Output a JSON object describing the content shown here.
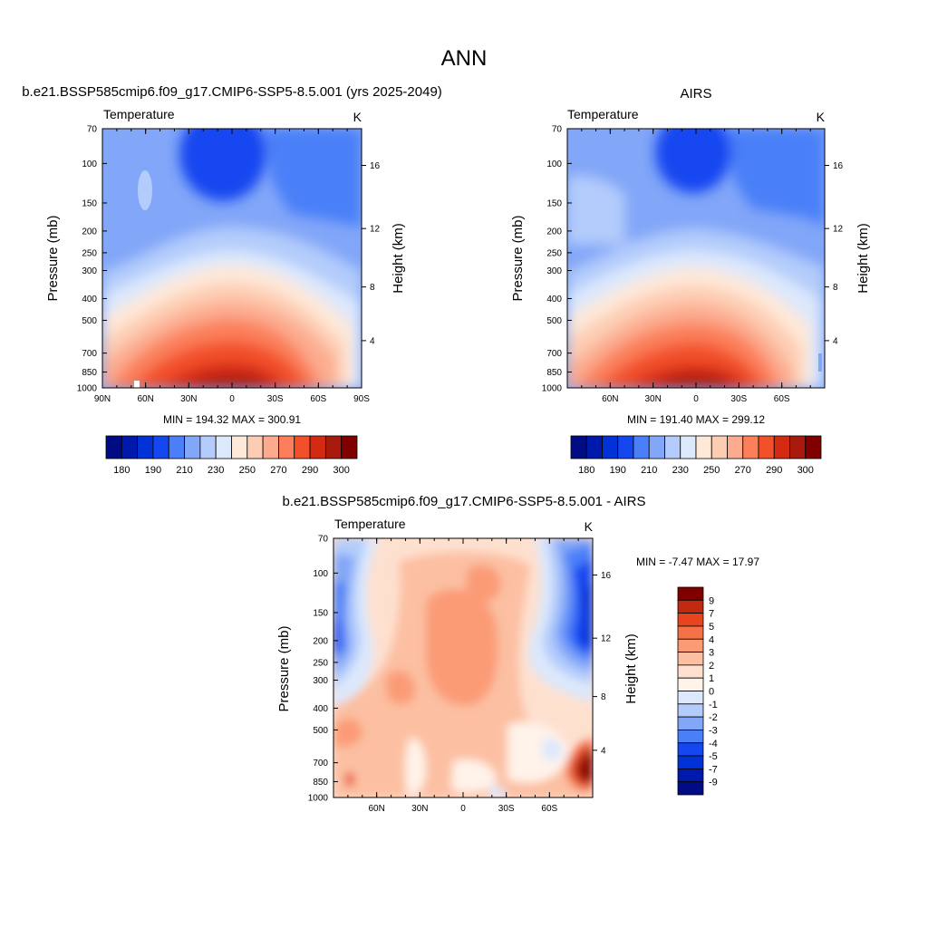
{
  "page_title": "ANN",
  "colors": {
    "abs_palette": [
      "#000b84",
      "#0019ad",
      "#0032d8",
      "#1447f0",
      "#4a7ff8",
      "#82a6f8",
      "#b3ccfb",
      "#dce8fc",
      "#fee8d8",
      "#fdcdb3",
      "#fcab8f",
      "#fb7f5a",
      "#f24f2b",
      "#d42a12",
      "#a81a0c",
      "#800000"
    ],
    "diff_palette": [
      "#000b84",
      "#0019ad",
      "#0032d8",
      "#1447f0",
      "#4a7ff8",
      "#82a6f8",
      "#b3ccfb",
      "#dce8fc",
      "#fff3ea",
      "#fee0cf",
      "#fcbfa2",
      "#fb9b76",
      "#f57148",
      "#e8451f",
      "#c22a10",
      "#800000"
    ]
  },
  "chart_data": [
    {
      "type": "heatmap",
      "panel": "model",
      "title": "b.e21.BSSP585cmip6.f09_g17.CMIP6-SSP5-8.5.001 (yrs 2025-2049)",
      "left_label": "Temperature",
      "units": "K",
      "ylabel": "Pressure (mb)",
      "ylabel_right": "Height (km)",
      "x_ticks": [
        "90N",
        "60N",
        "30N",
        "0",
        "30S",
        "60S",
        "90S"
      ],
      "y_ticks": [
        "70",
        "100",
        "150",
        "200",
        "250",
        "300",
        "400",
        "500",
        "700",
        "850",
        "1000"
      ],
      "height_ticks": [
        "16",
        "12",
        "8",
        "4"
      ],
      "min_max": "MIN = 194.32  MAX = 300.91",
      "colorbar_labels": [
        "180",
        "190",
        "210",
        "230",
        "250",
        "270",
        "290",
        "300"
      ],
      "ylim": [
        1000,
        70
      ],
      "xlim": [
        90,
        -90
      ]
    },
    {
      "type": "heatmap",
      "panel": "obs",
      "title": "AIRS",
      "left_label": "Temperature",
      "units": "K",
      "ylabel": "Pressure (mb)",
      "ylabel_right": "Height (km)",
      "x_ticks": [
        "60N",
        "30N",
        "0",
        "30S",
        "60S"
      ],
      "y_ticks": [
        "70",
        "100",
        "150",
        "200",
        "250",
        "300",
        "400",
        "500",
        "700",
        "850",
        "1000"
      ],
      "height_ticks": [
        "16",
        "12",
        "8",
        "4"
      ],
      "min_max": "MIN = 191.40  MAX = 299.12",
      "colorbar_labels": [
        "180",
        "190",
        "210",
        "230",
        "250",
        "270",
        "290",
        "300"
      ],
      "ylim": [
        1000,
        70
      ]
    },
    {
      "type": "heatmap",
      "panel": "difference",
      "title": "b.e21.BSSP585cmip6.f09_g17.CMIP6-SSP5-8.5.001 - AIRS",
      "left_label": "Temperature",
      "units": "K",
      "ylabel": "Pressure (mb)",
      "ylabel_right": "Height (km)",
      "x_ticks": [
        "60N",
        "30N",
        "0",
        "30S",
        "60S"
      ],
      "y_ticks": [
        "70",
        "100",
        "150",
        "200",
        "250",
        "300",
        "400",
        "500",
        "700",
        "850",
        "1000"
      ],
      "height_ticks": [
        "16",
        "12",
        "8",
        "4"
      ],
      "min_max": "MIN =  -7.47  MAX =  17.97",
      "colorbar_labels": [
        "9",
        "7",
        "5",
        "4",
        "3",
        "2",
        "1",
        "0",
        "-1",
        "-2",
        "-3",
        "-4",
        "-5",
        "-7",
        "-9"
      ],
      "ylim": [
        1000,
        70
      ]
    }
  ]
}
